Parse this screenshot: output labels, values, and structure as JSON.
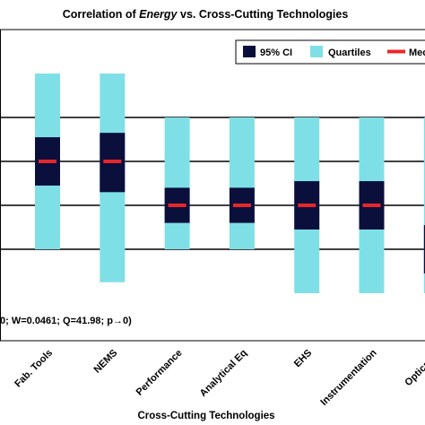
{
  "chart_data": {
    "type": "box",
    "title_prefix": "Correlation of ",
    "title_emphasis": "Energy",
    "title_suffix": " vs. Cross-Cutting Technologies",
    "xlabel": "Cross-Cutting Technologies",
    "ylabel": "",
    "stats_text": "0; W=0.0461; Q=41.98; p→0)",
    "ylim": [
      0,
      5
    ],
    "grid": true,
    "legend_position": "top-right",
    "legend": {
      "ci_label": "95% CI",
      "quartiles_label": "Quartiles",
      "median_label": "Mec"
    },
    "colors": {
      "ci": "#0b0f3b",
      "quartiles": "#7ee0e6",
      "median": "#e8262a",
      "grid": "#000000",
      "background": "#ffffff"
    },
    "categories": [
      "Fab. Tools",
      "NEMS",
      "Performance",
      "Analytical Eq",
      "EHS",
      "Instrumentation",
      "Optical Te"
    ],
    "series": [
      {
        "category": "Fab. Tools",
        "q1": 1.0,
        "q3": 5.0,
        "ci_low": 2.45,
        "ci_high": 3.55,
        "median": 3.0
      },
      {
        "category": "NEMS",
        "q1": 0.25,
        "q3": 5.0,
        "ci_low": 2.3,
        "ci_high": 3.65,
        "median": 3.0
      },
      {
        "category": "Performance",
        "q1": 1.0,
        "q3": 4.0,
        "ci_low": 1.6,
        "ci_high": 2.4,
        "median": 2.0
      },
      {
        "category": "Analytical Eq",
        "q1": 1.0,
        "q3": 4.0,
        "ci_low": 1.6,
        "ci_high": 2.4,
        "median": 2.0
      },
      {
        "category": "EHS",
        "q1": 0.0,
        "q3": 4.0,
        "ci_low": 1.45,
        "ci_high": 2.55,
        "median": 2.0
      },
      {
        "category": "Instrumentation",
        "q1": 0.0,
        "q3": 4.0,
        "ci_low": 1.45,
        "ci_high": 2.55,
        "median": 2.0
      },
      {
        "category": "Optical Te",
        "q1": 0.0,
        "q3": 4.0,
        "ci_low": 0.45,
        "ci_high": 1.55,
        "median": 1.0
      }
    ]
  }
}
